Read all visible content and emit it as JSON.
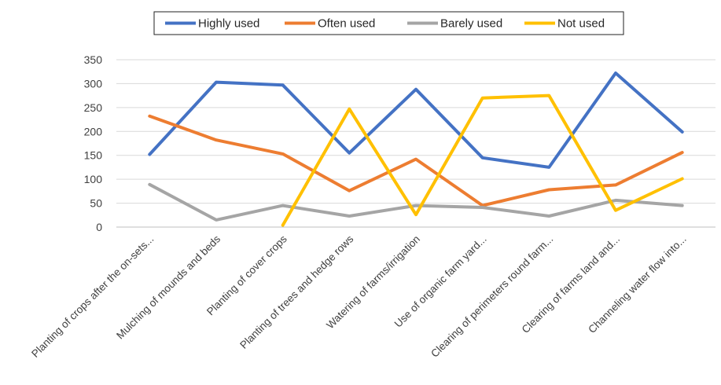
{
  "chart_data": {
    "type": "line",
    "title": "",
    "xlabel": "",
    "ylabel": "",
    "ylim": [
      0,
      350
    ],
    "y_ticks": [
      0,
      50,
      100,
      150,
      200,
      250,
      300,
      350
    ],
    "grid": true,
    "legend_position": "top",
    "categories": [
      "Planting of crops after the on-sets...",
      "Mulching of mounds and beds",
      "Planting of cover crops",
      "Planting of trees and hedge rows",
      "Watering of farms/irrigation",
      "Use of organic farm yard...",
      "Clearing of perimeters round farm...",
      "Clearing of farms land and...",
      "Channeling water flow into..."
    ],
    "series": [
      {
        "name": "Highly used",
        "color": "#4472c4",
        "values": [
          152,
          303,
          297,
          155,
          288,
          145,
          125,
          322,
          199
        ]
      },
      {
        "name": "Often used",
        "color": "#ed7d31",
        "values": [
          232,
          182,
          153,
          76,
          142,
          45,
          78,
          88,
          156
        ]
      },
      {
        "name": "Barely used",
        "color": "#a5a5a5",
        "values": [
          89,
          15,
          45,
          23,
          45,
          41,
          23,
          56,
          45
        ]
      },
      {
        "name": "Not used",
        "color": "#ffc000",
        "values": [
          null,
          null,
          4,
          247,
          26,
          270,
          275,
          35,
          101
        ]
      }
    ]
  }
}
